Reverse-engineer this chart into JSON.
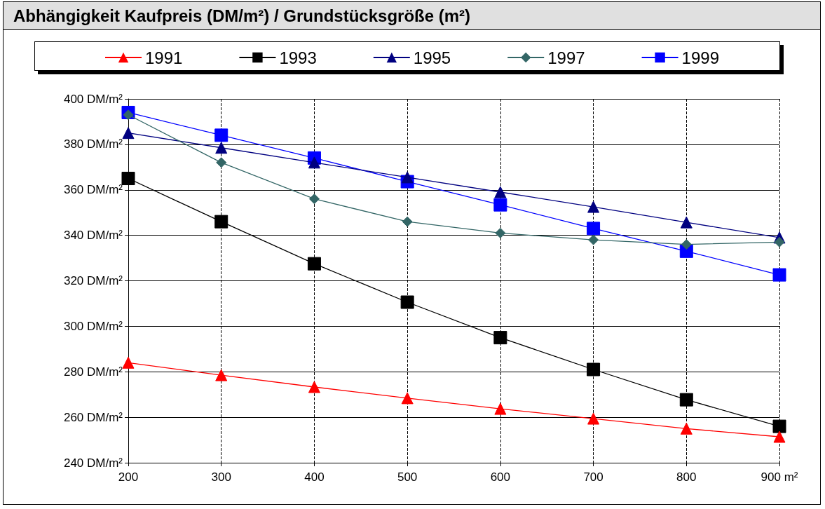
{
  "chart_data": {
    "type": "line",
    "title": "Abhängigkeit Kaufpreis (DM/m²) / Grundstücksgröße (m²)",
    "x": [
      200,
      300,
      400,
      500,
      600,
      700,
      800,
      900
    ],
    "series": [
      {
        "name": "1991",
        "color": "#ff0000",
        "marker": "triangle",
        "values": [
          284,
          278.5,
          273.3,
          268.4,
          263.7,
          259.4,
          255,
          251.4
        ]
      },
      {
        "name": "1993",
        "color": "#000000",
        "marker": "square",
        "values": [
          365,
          346,
          327.5,
          310.6,
          295,
          281,
          267.7,
          256
        ]
      },
      {
        "name": "1995",
        "color": "#000080",
        "marker": "triangle",
        "values": [
          385,
          378.5,
          372,
          365.5,
          359,
          352.5,
          345.7,
          339
        ]
      },
      {
        "name": "1997",
        "color": "#336666",
        "marker": "diamond",
        "values": [
          393,
          372,
          356,
          346,
          341,
          338,
          336,
          337
        ]
      },
      {
        "name": "1999",
        "color": "#0000ff",
        "marker": "square",
        "values": [
          394,
          384,
          374,
          363.6,
          353.4,
          343,
          333,
          322.6
        ]
      }
    ],
    "xlim": [
      200,
      900
    ],
    "xticks": [
      200,
      300,
      400,
      500,
      600,
      700,
      800,
      {
        "value": 900,
        "label": "900 m²"
      }
    ],
    "ylim": [
      240,
      400
    ],
    "yticks": [
      {
        "value": 240,
        "label": "240 DM/m²"
      },
      {
        "value": 260,
        "label": "260 DM/m²"
      },
      {
        "value": 280,
        "label": "280 DM/m²"
      },
      {
        "value": 300,
        "label": "300 DM/m²"
      },
      {
        "value": 320,
        "label": "320 DM/m²"
      },
      {
        "value": 340,
        "label": "340 DM/m²"
      },
      {
        "value": 360,
        "label": "360 DM/m²"
      },
      {
        "value": 380,
        "label": "380 DM/m²"
      },
      {
        "value": 400,
        "label": "400 DM/m²"
      }
    ],
    "grid": true,
    "legend": "top",
    "line_style": "solid"
  }
}
